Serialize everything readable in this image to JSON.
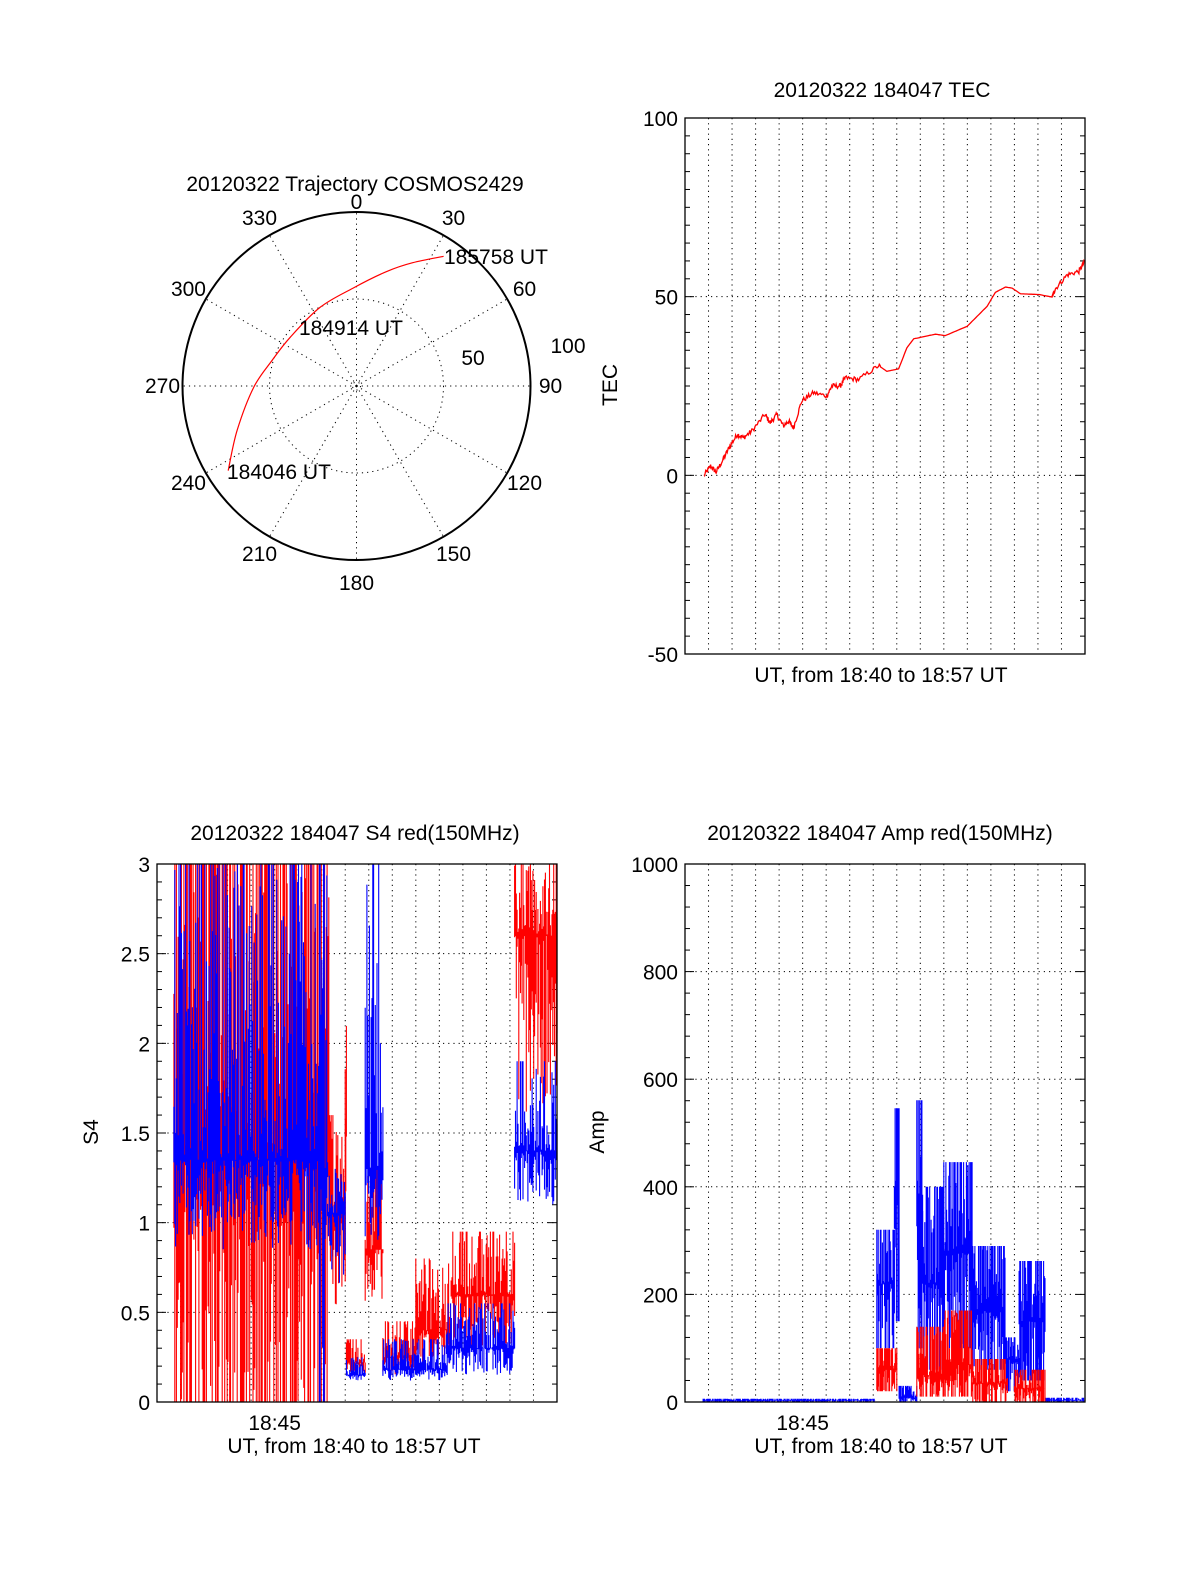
{
  "chart_data": [
    {
      "id": "trajectory",
      "type": "polar",
      "title": "20120322 Trajectory COSMOS2429",
      "angle_labels": [
        "0",
        "30",
        "60",
        "90",
        "120",
        "150",
        "180",
        "210",
        "240",
        "270",
        "300",
        "330"
      ],
      "angles_deg": [
        0,
        30,
        60,
        90,
        120,
        150,
        180,
        210,
        240,
        270,
        300,
        330
      ],
      "radial_ticks": [
        50,
        100
      ],
      "radial_tick_labels": [
        "50",
        "100"
      ],
      "rlim": [
        0,
        100
      ],
      "grid": true,
      "series": [
        {
          "name": "trajectory",
          "color": "#ff0000",
          "azimuth_deg": [
            236.6,
            249.7,
            269.4,
            286.8,
            306.3,
            335.1,
            358.0,
            14.6,
            24.5,
            33.9
          ],
          "radius": [
            88.3,
            73.1,
            59.0,
            50.7,
            47.3,
            49.8,
            56.3,
            67.9,
            77.9,
            89.8
          ]
        }
      ],
      "annotations": [
        {
          "text": "184046 UT",
          "label": "start"
        },
        {
          "text": "184914 UT",
          "label": "closest"
        },
        {
          "text": "185758 UT",
          "label": "end"
        }
      ]
    },
    {
      "id": "tec",
      "type": "line",
      "title": "20120322 184047 TEC",
      "xlabel": "UT, from 18:40 to 18:57 UT",
      "ylabel": "TEC",
      "xlim": [
        0,
        17
      ],
      "x_units": "minutes after 18:40",
      "ylim": [
        -50,
        100
      ],
      "yticks": [
        -50,
        0,
        50,
        100
      ],
      "ytick_labels": [
        "-50",
        "0",
        "50",
        "100"
      ],
      "y_minor_step": 5,
      "x_grid_step": 1,
      "grid": true,
      "series": [
        {
          "name": "TEC",
          "color": "#ff0000",
          "x": [
            0.81,
            1.09,
            1.32,
            1.63,
            1.91,
            2.23,
            2.48,
            2.84,
            3.4,
            3.62,
            3.9,
            4.18,
            4.4,
            4.61,
            4.96,
            5.46,
            6.03,
            6.24,
            6.6,
            6.81,
            7.38,
            8.23,
            8.58,
            9.08,
            9.43,
            9.72,
            10.64,
            11.06,
            11.99,
            12.84,
            13.19,
            13.62,
            13.9,
            14.26,
            15.04,
            15.6,
            15.74,
            16.24,
            16.74,
            17.0
          ],
          "y": [
            0.0,
            2.6,
            0.9,
            4.5,
            8.2,
            11.5,
            10.5,
            12.4,
            17.0,
            14.7,
            17.0,
            13.8,
            15.2,
            13.3,
            20.8,
            23.1,
            22.2,
            25.0,
            25.0,
            27.3,
            26.8,
            30.7,
            29.1,
            29.8,
            35.7,
            38.2,
            39.5,
            39.1,
            41.7,
            47.3,
            51.2,
            52.7,
            52.4,
            50.8,
            50.6,
            49.9,
            52.2,
            56.1,
            57.1,
            59.9
          ]
        }
      ]
    },
    {
      "id": "s4",
      "type": "line",
      "title": "20120322 184047 S4 red(150MHz)",
      "xlabel": "UT, from 18:40 to 18:57 UT",
      "ylabel": "S4",
      "xlim": [
        0,
        17
      ],
      "x_units": "minutes after 18:40",
      "xticks": [
        5
      ],
      "xtick_labels": [
        "18:45"
      ],
      "ylim": [
        0,
        3
      ],
      "yticks": [
        0,
        0.5,
        1,
        1.5,
        2,
        2.5,
        3
      ],
      "ytick_labels": [
        "0",
        "0.5",
        "1",
        "1.5",
        "2",
        "2.5",
        "3"
      ],
      "y_minor_step": 0.1,
      "x_grid_step": 1,
      "grid": true,
      "series": [
        {
          "name": "red",
          "color": "#ff0000",
          "envelope": [
            {
              "t": [
                0.72,
                7.3
              ],
              "low": 0.0,
              "high": 3.0,
              "mid": 1.4
            },
            {
              "t": [
                7.3,
                8.0
              ],
              "low": 0.5,
              "high": 1.6,
              "mid": 1.0
            },
            {
              "t": [
                8.0,
                8.05
              ],
              "low": 0.3,
              "high": 3.0,
              "mid": 1.5
            },
            {
              "t": [
                8.05,
                8.85
              ],
              "low": 0.15,
              "high": 0.35,
              "mid": 0.22
            },
            {
              "t": [
                8.85,
                9.6
              ],
              "low": 0.55,
              "high": 1.3,
              "mid": 0.85
            },
            {
              "t": [
                9.6,
                11.0
              ],
              "low": 0.15,
              "high": 0.45,
              "mid": 0.25
            },
            {
              "t": [
                11.0,
                12.5
              ],
              "low": 0.2,
              "high": 0.8,
              "mid": 0.4
            },
            {
              "t": [
                12.5,
                15.2
              ],
              "low": 0.3,
              "high": 0.95,
              "mid": 0.6
            },
            {
              "t": [
                15.2,
                17.0
              ],
              "low": 1.5,
              "high": 3.0,
              "mid": 2.6
            }
          ]
        },
        {
          "name": "blue",
          "color": "#0000ff",
          "envelope": [
            {
              "t": [
                0.72,
                6.9
              ],
              "low": 0.85,
              "high": 3.0,
              "mid": 1.35
            },
            {
              "t": [
                6.9,
                7.25
              ],
              "low": 0.0,
              "high": 3.0,
              "mid": 1.3
            },
            {
              "t": [
                7.25,
                8.0
              ],
              "low": 0.6,
              "high": 1.3,
              "mid": 1.05
            },
            {
              "t": [
                8.05,
                8.85
              ],
              "low": 0.12,
              "high": 0.25,
              "mid": 0.15
            },
            {
              "t": [
                8.85,
                9.6
              ],
              "low": 0.9,
              "high": 3.0,
              "mid": 1.3
            },
            {
              "t": [
                9.6,
                12.3
              ],
              "low": 0.12,
              "high": 0.35,
              "mid": 0.18
            },
            {
              "t": [
                12.3,
                15.2
              ],
              "low": 0.15,
              "high": 0.55,
              "mid": 0.3
            },
            {
              "t": [
                15.2,
                17.0
              ],
              "low": 1.1,
              "high": 1.9,
              "mid": 1.4
            }
          ]
        }
      ]
    },
    {
      "id": "amp",
      "type": "line",
      "title": "20120322 184047 Amp red(150MHz)",
      "xlabel": "UT, from 18:40 to 18:57 UT",
      "ylabel": "Amp",
      "xlim": [
        0,
        17
      ],
      "x_units": "minutes after 18:40",
      "xticks": [
        5
      ],
      "xtick_labels": [
        "18:45"
      ],
      "ylim": [
        0,
        1000
      ],
      "yticks": [
        0,
        200,
        400,
        600,
        800,
        1000
      ],
      "ytick_labels": [
        "0",
        "200",
        "400",
        "600",
        "800",
        "1000"
      ],
      "y_minor_step": 40,
      "x_grid_step": 1,
      "grid": true,
      "series": [
        {
          "name": "blue",
          "color": "#0000ff",
          "envelope": [
            {
              "t": [
                0.77,
                8.1
              ],
              "low": 0,
              "high": 6,
              "mid": 3
            },
            {
              "t": [
                8.15,
                8.9
              ],
              "low": 100,
              "high": 320,
              "mid": 220
            },
            {
              "t": [
                8.9,
                9.1
              ],
              "low": 150,
              "high": 546,
              "mid": 400
            },
            {
              "t": [
                9.1,
                9.85
              ],
              "low": 0,
              "high": 30,
              "mid": 8
            },
            {
              "t": [
                9.85,
                10.1
              ],
              "low": 100,
              "high": 561,
              "mid": 330
            },
            {
              "t": [
                10.1,
                11.0
              ],
              "low": 60,
              "high": 400,
              "mid": 220
            },
            {
              "t": [
                11.0,
                12.2
              ],
              "low": 100,
              "high": 446,
              "mid": 280
            },
            {
              "t": [
                12.2,
                13.6
              ],
              "low": 60,
              "high": 290,
              "mid": 170
            },
            {
              "t": [
                13.6,
                14.2
              ],
              "low": 20,
              "high": 120,
              "mid": 80
            },
            {
              "t": [
                14.2,
                15.3
              ],
              "low": 40,
              "high": 262,
              "mid": 150
            },
            {
              "t": [
                15.3,
                17.0
              ],
              "low": 0,
              "high": 8,
              "mid": 3
            }
          ]
        },
        {
          "name": "red",
          "color": "#ff0000",
          "envelope": [
            {
              "t": [
                8.15,
                9.0
              ],
              "low": 20,
              "high": 100,
              "mid": 60
            },
            {
              "t": [
                9.85,
                11.0
              ],
              "low": 10,
              "high": 140,
              "mid": 50
            },
            {
              "t": [
                11.0,
                12.2
              ],
              "low": 10,
              "high": 170,
              "mid": 70
            },
            {
              "t": [
                12.2,
                13.7
              ],
              "low": 0,
              "high": 80,
              "mid": 35
            },
            {
              "t": [
                14.0,
                15.3
              ],
              "low": 0,
              "high": 60,
              "mid": 25
            }
          ]
        }
      ]
    }
  ]
}
